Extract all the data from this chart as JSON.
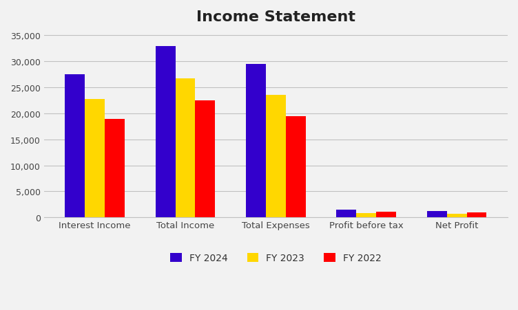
{
  "title": "Income Statement",
  "categories": [
    "Interest Income",
    "Total Income",
    "Total Expenses",
    "Profit before tax",
    "Net Profit"
  ],
  "series": [
    {
      "label": "FY 2024",
      "color": "#3300CC",
      "values": [
        27500,
        33000,
        29500,
        1500,
        1200
      ]
    },
    {
      "label": "FY 2023",
      "color": "#FFD700",
      "values": [
        22800,
        26800,
        23600,
        800,
        700
      ]
    },
    {
      "label": "FY 2022",
      "color": "#FF0000",
      "values": [
        19000,
        22500,
        19500,
        1050,
        1000
      ]
    }
  ],
  "ylim": [
    0,
    36000
  ],
  "yticks": [
    0,
    5000,
    10000,
    15000,
    20000,
    25000,
    30000,
    35000
  ],
  "ytick_labels": [
    "0",
    "5,000",
    "10,000",
    "15,000",
    "20,000",
    "25,000",
    "30,000",
    "35,000"
  ],
  "title_fontsize": 16,
  "title_fontweight": "bold",
  "figure_background_color": "#f2f2f2",
  "axes_background_color": "#f2f2f2",
  "grid_color": "#c0c0c0",
  "bar_width": 0.22,
  "legend_position": "lower center",
  "legend_ncol": 3
}
